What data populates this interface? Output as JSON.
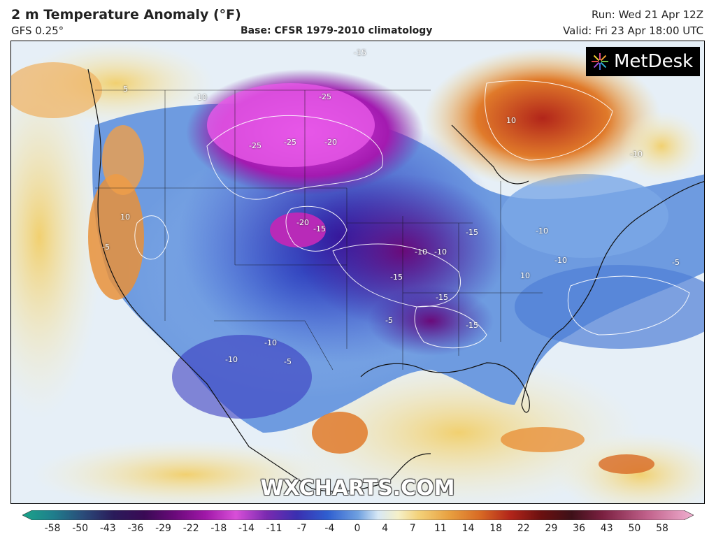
{
  "header": {
    "title": "2 m Temperature Anomaly (°F)",
    "model": "GFS 0.25°",
    "base": "Base: CFSR 1979-2010 climatology",
    "run": "Run: Wed 21 Apr 12Z",
    "valid": "Valid: Fri 23 Apr 18:00 UTC"
  },
  "logo": {
    "text": "MetDesk"
  },
  "watermark": "WXCHARTS.COM",
  "map_labels": [
    {
      "text": "-15"
    },
    {
      "text": "-25"
    },
    {
      "text": "-25"
    },
    {
      "text": "-20"
    },
    {
      "text": "-25"
    },
    {
      "text": "-10"
    },
    {
      "text": "-20"
    },
    {
      "text": "-15"
    },
    {
      "text": "-15"
    },
    {
      "text": "-10"
    },
    {
      "text": "-10"
    },
    {
      "text": "-15"
    },
    {
      "text": "-15"
    },
    {
      "text": "-15"
    },
    {
      "text": "-5"
    },
    {
      "text": "-10"
    },
    {
      "text": "10"
    },
    {
      "text": "-10"
    },
    {
      "text": "-10"
    },
    {
      "text": "10"
    },
    {
      "text": "-10"
    },
    {
      "text": "-5"
    },
    {
      "text": "-5"
    },
    {
      "text": "-10"
    },
    {
      "text": "-5"
    },
    {
      "text": "5"
    },
    {
      "text": "10"
    }
  ],
  "colorbar": {
    "ticks": [
      "-58",
      "-50",
      "-43",
      "-36",
      "-29",
      "-22",
      "-18",
      "-14",
      "-11",
      "-7",
      "-4",
      "0",
      "4",
      "7",
      "11",
      "14",
      "18",
      "22",
      "29",
      "36",
      "43",
      "50",
      "58"
    ],
    "colors": [
      "#1aa58a",
      "#1f7f8c",
      "#2a4c7a",
      "#2a1b5a",
      "#3a0a55",
      "#6a0a7a",
      "#a018a8",
      "#d84fd8",
      "#7a2ab0",
      "#3a2fb0",
      "#2f5fd0",
      "#6fa0e0",
      "#d7e8f5",
      "#f5f0c8",
      "#f3d27a",
      "#e8a040",
      "#d86a24",
      "#b2251a",
      "#6b1010",
      "#3e1018",
      "#7a2040",
      "#c0608a",
      "#f0b0d0"
    ]
  }
}
